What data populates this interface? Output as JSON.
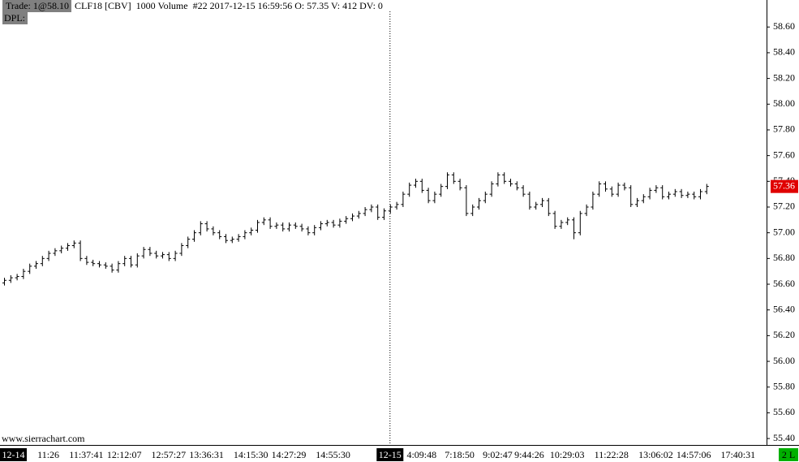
{
  "chart_data": {
    "type": "ohlc",
    "trade_label": "Trade: 1@58.10",
    "title": "CLF18 [CBV]  1000 Volume  #22 2017-12-15 16:59:56 O: 57.35 V: 412 DV: 0",
    "study_label": "DPL:",
    "watermark": "www.sierrachart.com",
    "status": "2 L",
    "color": "#000000",
    "categories": [
      "12-14",
      null,
      null,
      null,
      null,
      null,
      null,
      "11:26",
      null,
      null,
      null,
      null,
      null,
      "11:37:41",
      null,
      null,
      null,
      null,
      null,
      "12:12:07",
      null,
      null,
      null,
      null,
      null,
      null,
      "12:57:27",
      null,
      null,
      null,
      null,
      null,
      "13:36:31",
      null,
      null,
      null,
      null,
      null,
      null,
      "14:15:30",
      null,
      null,
      null,
      null,
      null,
      "14:27:29",
      null,
      null,
      null,
      null,
      null,
      null,
      "14:55:30",
      null,
      null,
      null,
      null,
      null,
      null,
      null,
      null,
      "12-15",
      null,
      null,
      null,
      null,
      "4:09:48",
      null,
      null,
      null,
      null,
      null,
      "7:18:50",
      null,
      null,
      null,
      null,
      null,
      "9:02:47",
      null,
      null,
      null,
      null,
      "9:44:26",
      null,
      null,
      null,
      null,
      null,
      "10:29:03",
      null,
      null,
      null,
      null,
      null,
      null,
      "11:22:28",
      null,
      null,
      null,
      null,
      null,
      null,
      "13:06:02",
      null,
      null,
      null,
      null,
      null,
      "14:57:06",
      null,
      null,
      null,
      null,
      null,
      null,
      "17:40:31"
    ],
    "open": [
      56.61,
      56.63,
      56.65,
      56.66,
      56.7,
      56.74,
      56.76,
      56.8,
      56.84,
      56.86,
      56.88,
      56.9,
      56.92,
      56.8,
      56.77,
      56.76,
      56.75,
      56.74,
      56.71,
      56.76,
      56.8,
      56.75,
      56.82,
      56.87,
      56.84,
      56.82,
      56.83,
      56.8,
      56.84,
      56.9,
      56.95,
      57.0,
      57.07,
      57.03,
      57.0,
      56.97,
      56.94,
      56.95,
      56.97,
      57.0,
      57.02,
      57.08,
      57.1,
      57.05,
      57.06,
      57.03,
      57.06,
      57.05,
      57.03,
      57.0,
      57.04,
      57.07,
      57.08,
      57.06,
      57.09,
      57.11,
      57.13,
      57.15,
      57.18,
      57.2,
      57.12,
      57.17,
      57.2,
      57.22,
      57.3,
      57.37,
      57.4,
      57.33,
      57.25,
      57.3,
      57.36,
      57.45,
      57.4,
      57.35,
      57.15,
      57.2,
      57.25,
      57.3,
      57.38,
      57.45,
      57.4,
      57.38,
      57.35,
      57.3,
      57.2,
      57.22,
      57.25,
      57.15,
      57.05,
      57.08,
      57.1,
      57.0,
      57.15,
      57.2,
      57.3,
      57.38,
      57.34,
      57.3,
      57.37,
      57.35,
      57.22,
      57.25,
      57.28,
      57.33,
      57.35,
      57.28,
      57.3,
      57.32,
      57.29,
      57.3,
      57.28,
      57.32,
      null,
      null,
      null,
      null,
      null
    ],
    "high": [
      56.65,
      56.67,
      56.68,
      56.72,
      56.76,
      56.78,
      56.82,
      56.86,
      56.88,
      56.9,
      56.92,
      56.94,
      56.94,
      56.82,
      56.79,
      56.78,
      56.77,
      56.76,
      56.78,
      56.82,
      56.82,
      56.84,
      56.89,
      56.89,
      56.86,
      56.85,
      56.85,
      56.86,
      56.92,
      56.97,
      57.02,
      57.09,
      57.09,
      57.05,
      57.02,
      56.99,
      56.97,
      56.99,
      57.02,
      57.04,
      57.1,
      57.12,
      57.12,
      57.08,
      57.08,
      57.08,
      57.08,
      57.07,
      57.05,
      57.06,
      57.09,
      57.1,
      57.1,
      57.11,
      57.13,
      57.15,
      57.17,
      57.2,
      57.22,
      57.22,
      57.19,
      57.22,
      57.24,
      57.32,
      57.39,
      57.42,
      57.42,
      57.35,
      57.32,
      57.38,
      57.47,
      57.47,
      57.42,
      57.37,
      57.22,
      57.27,
      57.32,
      57.4,
      57.47,
      57.47,
      57.42,
      57.4,
      57.37,
      57.32,
      57.24,
      57.27,
      57.27,
      57.17,
      57.1,
      57.12,
      57.12,
      57.17,
      57.22,
      57.32,
      57.4,
      57.4,
      57.36,
      57.39,
      57.39,
      57.37,
      57.27,
      57.3,
      57.35,
      57.37,
      57.37,
      57.32,
      57.34,
      57.34,
      57.32,
      57.32,
      57.34,
      57.38,
      null,
      null,
      null,
      null,
      null
    ],
    "low": [
      56.59,
      56.61,
      56.63,
      56.64,
      56.68,
      56.72,
      56.74,
      56.78,
      56.82,
      56.84,
      56.86,
      56.88,
      56.78,
      56.75,
      56.74,
      56.73,
      56.72,
      56.69,
      56.69,
      56.74,
      56.73,
      56.73,
      56.8,
      56.82,
      56.8,
      56.8,
      56.78,
      56.78,
      56.82,
      56.88,
      56.93,
      56.98,
      57.01,
      56.98,
      56.95,
      56.92,
      56.92,
      56.93,
      56.95,
      56.98,
      57.0,
      57.06,
      57.03,
      57.03,
      57.01,
      57.01,
      57.03,
      57.01,
      56.98,
      56.98,
      57.02,
      57.05,
      57.04,
      57.04,
      57.07,
      57.09,
      57.11,
      57.13,
      57.16,
      57.1,
      57.1,
      57.15,
      57.18,
      57.2,
      57.28,
      57.35,
      57.31,
      57.23,
      57.23,
      57.28,
      57.34,
      57.38,
      57.33,
      57.13,
      57.13,
      57.18,
      57.23,
      57.28,
      57.36,
      57.38,
      57.36,
      57.33,
      57.28,
      57.18,
      57.18,
      57.2,
      57.13,
      57.03,
      57.03,
      57.06,
      56.95,
      56.98,
      57.13,
      57.18,
      57.28,
      57.32,
      57.28,
      57.28,
      57.33,
      57.2,
      57.2,
      57.23,
      57.26,
      57.31,
      57.26,
      57.26,
      57.28,
      57.27,
      57.27,
      57.26,
      57.26,
      57.3,
      null,
      null,
      null,
      null,
      null
    ],
    "close": [
      56.63,
      56.65,
      56.66,
      56.7,
      56.74,
      56.76,
      56.8,
      56.84,
      56.86,
      56.88,
      56.9,
      56.92,
      56.8,
      56.77,
      56.76,
      56.75,
      56.74,
      56.71,
      56.76,
      56.8,
      56.75,
      56.82,
      56.87,
      56.84,
      56.82,
      56.83,
      56.8,
      56.84,
      56.9,
      56.95,
      57.0,
      57.07,
      57.03,
      57.0,
      56.97,
      56.94,
      56.95,
      56.97,
      57.0,
      57.02,
      57.08,
      57.1,
      57.05,
      57.06,
      57.03,
      57.06,
      57.05,
      57.03,
      57.0,
      57.04,
      57.07,
      57.08,
      57.06,
      57.09,
      57.11,
      57.13,
      57.15,
      57.18,
      57.2,
      57.12,
      57.17,
      57.2,
      57.22,
      57.3,
      57.37,
      57.4,
      57.33,
      57.25,
      57.3,
      57.36,
      57.45,
      57.4,
      57.35,
      57.15,
      57.2,
      57.25,
      57.3,
      57.38,
      57.45,
      57.4,
      57.38,
      57.35,
      57.3,
      57.2,
      57.22,
      57.25,
      57.15,
      57.05,
      57.08,
      57.1,
      57.0,
      57.15,
      57.2,
      57.3,
      57.38,
      57.34,
      57.3,
      57.37,
      57.35,
      57.22,
      57.25,
      57.28,
      57.33,
      57.35,
      57.28,
      57.3,
      57.32,
      57.29,
      57.3,
      57.28,
      57.32,
      57.36,
      null,
      null,
      null,
      null,
      null
    ],
    "ylim": [
      55.35,
      58.81
    ],
    "yticks": [
      {
        "value": 55.4,
        "label": "55.40"
      },
      {
        "value": 55.6,
        "label": "55.60"
      },
      {
        "value": 55.8,
        "label": "55.80"
      },
      {
        "value": 56,
        "label": "56.00"
      },
      {
        "value": 56.2,
        "label": "56.20"
      },
      {
        "value": 56.4,
        "label": "56.40"
      },
      {
        "value": 56.6,
        "label": "56.60"
      },
      {
        "value": 56.8,
        "label": "56.80"
      },
      {
        "value": 57,
        "label": "57.00"
      },
      {
        "value": 57.2,
        "label": "57.20"
      },
      {
        "value": 57.4,
        "label": "57.40"
      },
      {
        "value": 57.6,
        "label": "57.60"
      },
      {
        "value": 57.8,
        "label": "57.80"
      },
      {
        "value": 58,
        "label": "58.00"
      },
      {
        "value": 58.2,
        "label": "58.20"
      },
      {
        "value": 58.4,
        "label": "58.40"
      },
      {
        "value": 58.6,
        "label": "58.60"
      }
    ],
    "grid": false
  }
}
